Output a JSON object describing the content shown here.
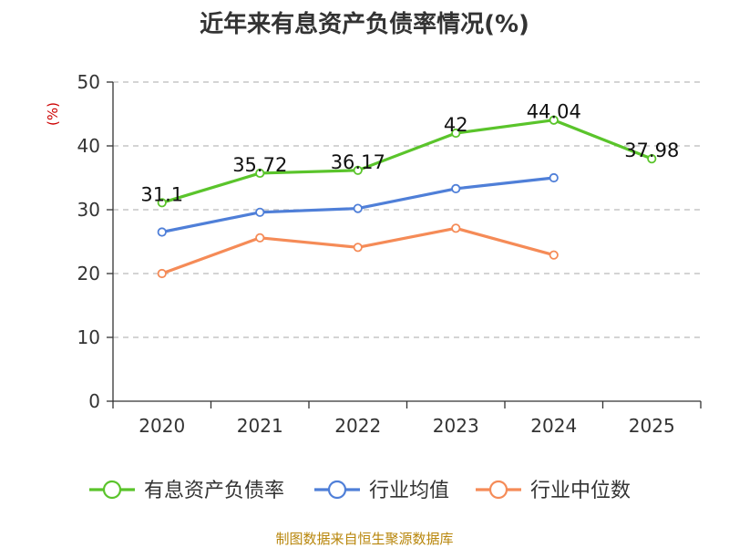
{
  "chart_data": {
    "type": "line",
    "title": "近年来有息资产负债率情况(%)",
    "ylabel": "(%)",
    "categories": [
      "2020",
      "2021",
      "2022",
      "2023",
      "2024",
      "2025"
    ],
    "ylim": [
      0,
      50
    ],
    "yticks": [
      0,
      10,
      20,
      30,
      40,
      50
    ],
    "grid": true,
    "legend_position": "bottom",
    "series": [
      {
        "name": "有息资产负债率",
        "color": "#5ac42b",
        "values": [
          31.1,
          35.72,
          36.17,
          42,
          44.04,
          37.98
        ],
        "labels": [
          "31.1",
          "35.72",
          "36.17",
          "42",
          "44.04",
          "37.98"
        ],
        "show_labels": true
      },
      {
        "name": "行业均值",
        "color": "#4f7fd8",
        "values": [
          26.5,
          29.6,
          30.2,
          33.3,
          35.0,
          null
        ],
        "show_labels": false
      },
      {
        "name": "行业中位数",
        "color": "#f58b57",
        "values": [
          20.0,
          25.6,
          24.1,
          27.1,
          22.9,
          null
        ],
        "show_labels": false
      }
    ],
    "source": "制图数据来自恒生聚源数据库"
  }
}
